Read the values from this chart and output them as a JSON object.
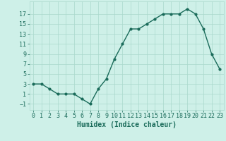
{
  "x": [
    0,
    1,
    2,
    3,
    4,
    5,
    6,
    7,
    8,
    9,
    10,
    11,
    12,
    13,
    14,
    15,
    16,
    17,
    18,
    19,
    20,
    21,
    22,
    23
  ],
  "y": [
    3,
    3,
    2,
    1,
    1,
    1,
    0,
    -1,
    2,
    4,
    8,
    11,
    14,
    14,
    15,
    16,
    17,
    17,
    17,
    18,
    17,
    14,
    9,
    6
  ],
  "line_color": "#1a6b5a",
  "marker": "o",
  "markersize": 2,
  "linewidth": 1.0,
  "bg_color": "#cef0e8",
  "grid_color": "#aad8cc",
  "xlabel": "Humidex (Indice chaleur)",
  "xlabel_fontsize": 7,
  "xlabel_color": "#1a6b5a",
  "tick_color": "#1a6b5a",
  "tick_fontsize": 6,
  "xlim": [
    -0.5,
    23.5
  ],
  "ylim": [
    -2.2,
    19.5
  ],
  "yticks": [
    -1,
    1,
    3,
    5,
    7,
    9,
    11,
    13,
    15,
    17
  ],
  "xticks": [
    0,
    1,
    2,
    3,
    4,
    5,
    6,
    7,
    8,
    9,
    10,
    11,
    12,
    13,
    14,
    15,
    16,
    17,
    18,
    19,
    20,
    21,
    22,
    23
  ]
}
